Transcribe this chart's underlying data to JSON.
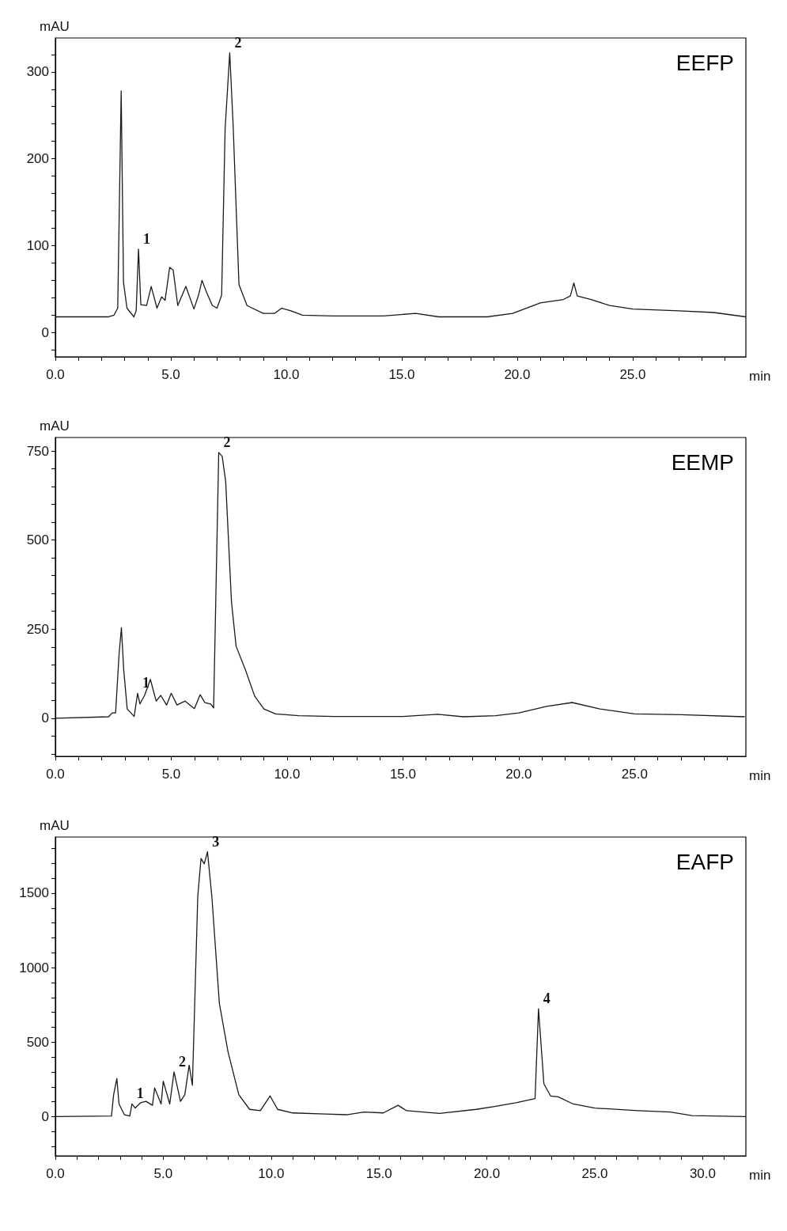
{
  "chart_data": [
    {
      "type": "line",
      "title": "EEFP",
      "xlabel": "min",
      "ylabel": "mAU",
      "color": "#1a1a1a",
      "x": [
        0,
        2.3,
        2.54,
        2.7,
        2.85,
        2.95,
        3.1,
        3.4,
        3.5,
        3.6,
        3.7,
        3.95,
        4.15,
        4.4,
        4.6,
        4.75,
        4.95,
        5.1,
        5.3,
        5.65,
        6.0,
        6.2,
        6.35,
        6.55,
        6.8,
        7.0,
        7.2,
        7.35,
        7.55,
        7.7,
        7.95,
        8.3,
        9.0,
        9.5,
        9.8,
        10.2,
        10.7,
        12,
        14.2,
        15.6,
        16.6,
        18.7,
        19.8,
        21,
        22.0,
        22.3,
        22.45,
        22.6,
        23.2,
        24,
        25,
        27,
        28.5,
        29.9
      ],
      "values": [
        18,
        18,
        20,
        28,
        278,
        58,
        28,
        18,
        25,
        96,
        32,
        31,
        53,
        28,
        41,
        37,
        75,
        72,
        31,
        53,
        27,
        43,
        60,
        46,
        31,
        28,
        43,
        234,
        322,
        237,
        55,
        31,
        22,
        22,
        28,
        25,
        20,
        19,
        19,
        22,
        18,
        18,
        22,
        34,
        38,
        42,
        57,
        42,
        38,
        31,
        27,
        25,
        23,
        18
      ],
      "xlim": [
        0,
        29.9
      ],
      "ylim": [
        -28,
        339
      ],
      "xticks": [
        {
          "value": 0,
          "label": "0.0"
        },
        {
          "value": 1,
          "label": null
        },
        {
          "value": 2,
          "label": null
        },
        {
          "value": 3,
          "label": null
        },
        {
          "value": 4,
          "label": null
        },
        {
          "value": 5,
          "label": "5.0"
        },
        {
          "value": 6,
          "label": null
        },
        {
          "value": 7,
          "label": null
        },
        {
          "value": 8,
          "label": null
        },
        {
          "value": 9,
          "label": null
        },
        {
          "value": 10,
          "label": "10.0"
        },
        {
          "value": 11,
          "label": null
        },
        {
          "value": 12,
          "label": null
        },
        {
          "value": 13,
          "label": null
        },
        {
          "value": 14,
          "label": null
        },
        {
          "value": 15,
          "label": "15.0"
        },
        {
          "value": 16,
          "label": null
        },
        {
          "value": 17,
          "label": null
        },
        {
          "value": 18,
          "label": null
        },
        {
          "value": 19,
          "label": null
        },
        {
          "value": 20,
          "label": "20.0"
        },
        {
          "value": 21,
          "label": null
        },
        {
          "value": 22,
          "label": null
        },
        {
          "value": 23,
          "label": null
        },
        {
          "value": 24,
          "label": null
        },
        {
          "value": 25,
          "label": "25.0"
        },
        {
          "value": 26,
          "label": null
        },
        {
          "value": 27,
          "label": null
        },
        {
          "value": 28,
          "label": null
        },
        {
          "value": 29,
          "label": null
        }
      ],
      "yticks": [
        {
          "value": -20,
          "label": null
        },
        0,
        {
          "value": 20,
          "label": null
        },
        {
          "value": 40,
          "label": null
        },
        {
          "value": 60,
          "label": null
        },
        {
          "value": 80,
          "label": null
        },
        100,
        {
          "value": 120,
          "label": null
        },
        {
          "value": 140,
          "label": null
        },
        {
          "value": 160,
          "label": null
        },
        {
          "value": 180,
          "label": null
        },
        200,
        {
          "value": 220,
          "label": null
        },
        {
          "value": 240,
          "label": null
        },
        {
          "value": 260,
          "label": null
        },
        {
          "value": 280,
          "label": null
        },
        300,
        {
          "value": 320,
          "label": null
        }
      ],
      "annotations": [
        {
          "text": "1",
          "x": 3.6,
          "y": 96
        },
        {
          "text": "2",
          "x": 7.55,
          "y": 322
        }
      ]
    },
    {
      "type": "line",
      "title": "EEMP",
      "xlabel": "min",
      "ylabel": "mAU",
      "color": "#1a1a1a",
      "x": [
        0,
        2.3,
        2.45,
        2.6,
        2.75,
        2.85,
        2.95,
        3.1,
        3.4,
        3.55,
        3.65,
        3.85,
        4.1,
        4.35,
        4.55,
        4.8,
        5.0,
        5.25,
        5.6,
        6.0,
        6.25,
        6.45,
        6.7,
        6.83,
        7.05,
        7.2,
        7.35,
        7.6,
        7.8,
        8.2,
        8.6,
        9.0,
        9.5,
        10.5,
        12,
        15,
        16.5,
        17.6,
        19,
        20,
        21.2,
        22.3,
        23.5,
        25,
        27,
        29.75
      ],
      "values": [
        0,
        4,
        15,
        15,
        180,
        254,
        136,
        26,
        5,
        70,
        40,
        64,
        109,
        48,
        64,
        37,
        70,
        37,
        48,
        27,
        66,
        44,
        40,
        29,
        746,
        735,
        665,
        327,
        202,
        136,
        62,
        26,
        12,
        7,
        5,
        5,
        11,
        4,
        7,
        15,
        33,
        44,
        26,
        12,
        10,
        4
      ],
      "xlim": [
        0,
        29.8
      ],
      "ylim": [
        -107,
        788
      ],
      "xticks": [
        {
          "value": 0,
          "label": "0.0"
        },
        {
          "value": 1,
          "label": null
        },
        {
          "value": 2,
          "label": null
        },
        {
          "value": 3,
          "label": null
        },
        {
          "value": 4,
          "label": null
        },
        {
          "value": 5,
          "label": "5.0"
        },
        {
          "value": 6,
          "label": null
        },
        {
          "value": 7,
          "label": null
        },
        {
          "value": 8,
          "label": null
        },
        {
          "value": 9,
          "label": null
        },
        {
          "value": 10,
          "label": "10.0"
        },
        {
          "value": 11,
          "label": null
        },
        {
          "value": 12,
          "label": null
        },
        {
          "value": 13,
          "label": null
        },
        {
          "value": 14,
          "label": null
        },
        {
          "value": 15,
          "label": "15.0"
        },
        {
          "value": 16,
          "label": null
        },
        {
          "value": 17,
          "label": null
        },
        {
          "value": 18,
          "label": null
        },
        {
          "value": 19,
          "label": null
        },
        {
          "value": 20,
          "label": "20.0"
        },
        {
          "value": 21,
          "label": null
        },
        {
          "value": 22,
          "label": null
        },
        {
          "value": 23,
          "label": null
        },
        {
          "value": 24,
          "label": null
        },
        {
          "value": 25,
          "label": "25.0"
        },
        {
          "value": 26,
          "label": null
        },
        {
          "value": 27,
          "label": null
        },
        {
          "value": 28,
          "label": null
        },
        {
          "value": 29,
          "label": null
        }
      ],
      "yticks": [
        {
          "value": -100,
          "label": null
        },
        {
          "value": -50,
          "label": null
        },
        0,
        {
          "value": 50,
          "label": null
        },
        {
          "value": 100,
          "label": null
        },
        {
          "value": 150,
          "label": null
        },
        {
          "value": 200,
          "label": null
        },
        250,
        {
          "value": 300,
          "label": null
        },
        {
          "value": 350,
          "label": null
        },
        {
          "value": 400,
          "label": null
        },
        {
          "value": 450,
          "label": null
        },
        500,
        {
          "value": 550,
          "label": null
        },
        {
          "value": 600,
          "label": null
        },
        {
          "value": 650,
          "label": null
        },
        {
          "value": 700,
          "label": null
        },
        750
      ],
      "annotations": [
        {
          "text": "1",
          "x": 3.55,
          "y": 70
        },
        {
          "text": "2",
          "x": 7.05,
          "y": 746
        }
      ]
    },
    {
      "type": "line",
      "title": "EAFP",
      "xlabel": "min",
      "ylabel": "mAU",
      "color": "#1a1a1a",
      "x": [
        0,
        2.6,
        2.7,
        2.85,
        2.95,
        3.2,
        3.45,
        3.55,
        3.7,
        3.95,
        4.2,
        4.5,
        4.6,
        4.9,
        5.0,
        5.3,
        5.5,
        5.8,
        6.0,
        6.2,
        6.35,
        6.6,
        6.75,
        6.9,
        7.05,
        7.25,
        7.6,
        8.0,
        8.5,
        9.0,
        9.5,
        9.95,
        10.3,
        11,
        12.5,
        13.5,
        14.3,
        15.2,
        15.88,
        16.28,
        17.8,
        19.5,
        20.3,
        21.35,
        22.23,
        22.39,
        22.64,
        22.95,
        23.3,
        24,
        25,
        27,
        28.5,
        29.5,
        32
      ],
      "values": [
        0,
        4,
        148,
        256,
        85,
        13,
        4,
        85,
        58,
        94,
        103,
        76,
        193,
        85,
        238,
        85,
        301,
        103,
        148,
        346,
        211,
        1481,
        1733,
        1697,
        1778,
        1481,
        760,
        436,
        148,
        49,
        40,
        139,
        49,
        25,
        18,
        13,
        31,
        25,
        76,
        40,
        22,
        49,
        67,
        94,
        121,
        724,
        220,
        139,
        133,
        85,
        58,
        40,
        31,
        7,
        0
      ],
      "xlim": [
        0,
        32
      ],
      "ylim": [
        -263,
        1877
      ],
      "xticks": [
        {
          "value": 0,
          "label": "0.0"
        },
        {
          "value": 1,
          "label": null
        },
        {
          "value": 2,
          "label": null
        },
        {
          "value": 3,
          "label": null
        },
        {
          "value": 4,
          "label": null
        },
        {
          "value": 5,
          "label": "5.0"
        },
        {
          "value": 6,
          "label": null
        },
        {
          "value": 7,
          "label": null
        },
        {
          "value": 8,
          "label": null
        },
        {
          "value": 9,
          "label": null
        },
        {
          "value": 10,
          "label": "10.0"
        },
        {
          "value": 11,
          "label": null
        },
        {
          "value": 12,
          "label": null
        },
        {
          "value": 13,
          "label": null
        },
        {
          "value": 14,
          "label": null
        },
        {
          "value": 15,
          "label": "15.0"
        },
        {
          "value": 16,
          "label": null
        },
        {
          "value": 17,
          "label": null
        },
        {
          "value": 18,
          "label": null
        },
        {
          "value": 19,
          "label": null
        },
        {
          "value": 20,
          "label": "20.0"
        },
        {
          "value": 21,
          "label": null
        },
        {
          "value": 22,
          "label": null
        },
        {
          "value": 23,
          "label": null
        },
        {
          "value": 24,
          "label": null
        },
        {
          "value": 25,
          "label": "25.0"
        },
        {
          "value": 26,
          "label": null
        },
        {
          "value": 27,
          "label": null
        },
        {
          "value": 28,
          "label": null
        },
        {
          "value": 29,
          "label": null
        },
        {
          "value": 30,
          "label": "30.0"
        },
        {
          "value": 31,
          "label": null
        }
      ],
      "yticks": [
        {
          "value": -200,
          "label": null
        },
        {
          "value": -100,
          "label": null
        },
        0,
        {
          "value": 100,
          "label": null
        },
        {
          "value": 200,
          "label": null
        },
        {
          "value": 300,
          "label": null
        },
        {
          "value": 400,
          "label": null
        },
        500,
        {
          "value": 600,
          "label": null
        },
        {
          "value": 700,
          "label": null
        },
        {
          "value": 800,
          "label": null
        },
        {
          "value": 900,
          "label": null
        },
        1000,
        {
          "value": 1100,
          "label": null
        },
        {
          "value": 1200,
          "label": null
        },
        {
          "value": 1300,
          "label": null
        },
        {
          "value": 1400,
          "label": null
        },
        1500,
        {
          "value": 1600,
          "label": null
        },
        {
          "value": 1700,
          "label": null
        },
        {
          "value": 1800,
          "label": null
        }
      ],
      "annotations": [
        {
          "text": "1",
          "x": 3.55,
          "y": 85
        },
        {
          "text": "2",
          "x": 5.5,
          "y": 301
        },
        {
          "text": "3",
          "x": 7.05,
          "y": 1778
        },
        {
          "text": "4",
          "x": 22.39,
          "y": 724
        }
      ]
    }
  ]
}
